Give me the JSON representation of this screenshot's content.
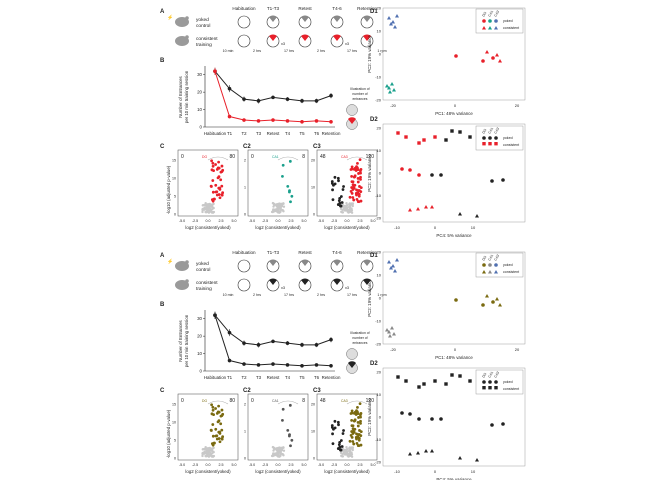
{
  "copies": [
    {
      "accent": "#e8202a",
      "c1_color": "#e8202a",
      "c2_color": "#1aa08c",
      "c3_color": "#e8202a",
      "d1_scatter_colors": [
        "#e8202a",
        "#1aa08c",
        "#5070b0"
      ],
      "d2_scatter_colors": [
        "#e8202a",
        "#222222"
      ]
    },
    {
      "accent": "#222222",
      "c1_color": "#7a6a10",
      "c2_color": "#555555",
      "c3_color": "#7a6a10",
      "d1_scatter_colors": [
        "#7a6a10",
        "#888888",
        "#5070b0"
      ],
      "d2_scatter_colors": [
        "#222222",
        "#222222"
      ]
    }
  ],
  "panel_labels": {
    "A": "A",
    "B": "B",
    "C": "C",
    "C2": "C2",
    "C3": "C3",
    "D1": "D1",
    "D2": "D2"
  },
  "panel_a": {
    "rows": [
      "yoked",
      "control",
      "consistent",
      "training"
    ],
    "stages": [
      "Habituation",
      "T1-T3",
      "Retest",
      "T4-6",
      "Retention"
    ],
    "gaps": [
      "10 min",
      "2 hrs",
      "17 hrs",
      "2 hrs",
      "17 hrs"
    ],
    "x3": "x3",
    "rpm": "1 rpm"
  },
  "chart_data": [
    {
      "type": "line",
      "panel": "B",
      "categories": [
        "Habituation",
        "T1",
        "T2",
        "T3",
        "Retest",
        "T4",
        "T5",
        "T6",
        "Retention"
      ],
      "series": [
        {
          "values": [
            32,
            22,
            16,
            15,
            17,
            16,
            15,
            15,
            18
          ],
          "errors": [
            2,
            2,
            1.5,
            1.5,
            1,
            1.2,
            1.3,
            1.3,
            1.5
          ]
        },
        {
          "values": [
            32,
            6,
            4,
            3.5,
            4,
            3.5,
            3,
            3.5,
            3
          ],
          "errors": [
            2,
            1,
            0.8,
            0.7,
            0.6,
            0.7,
            0.6,
            0.7,
            0.6
          ]
        }
      ],
      "ylabel": "Number of Entrances per 10 min training session",
      "yticks": [
        0,
        10,
        20,
        30
      ],
      "ylim": [
        0,
        35
      ],
      "legend_note": "Illustration of number of entrances"
    },
    {
      "type": "scatter",
      "panels": [
        "C",
        "C2",
        "C3"
      ],
      "xlabel": "log2 (consistent/yoked)",
      "ylabel": "-log10 (adjusted p-value)",
      "xticks": [
        "-5.0",
        "-2.5",
        "0.0",
        "2.5",
        "5.0"
      ],
      "subplots": [
        {
          "region": "DG",
          "left_count": "0",
          "right_count": "80",
          "yticks": [
            "0",
            "5",
            "10",
            "15"
          ]
        },
        {
          "region": "CA1",
          "left_count": "0",
          "right_count": "8",
          "yticks": [
            "0",
            "1",
            "2"
          ]
        },
        {
          "region": "CA3",
          "left_count": "48",
          "right_count": "120",
          "yticks": [
            "0",
            "10",
            "20"
          ]
        }
      ]
    },
    {
      "type": "scatter",
      "panel": "D1",
      "xlabel": "PC1: 48% variance",
      "ylabel": "PC2: 19% variance",
      "xticks": [
        "-20",
        "0",
        "20"
      ],
      "yticks": [
        "-20",
        "-10",
        "0",
        "10",
        "20"
      ],
      "legend": [
        "DG",
        "CA1",
        "CA3",
        "yoked",
        "consistent"
      ]
    },
    {
      "type": "scatter",
      "panel": "D2",
      "xlabel": "PC4: 5% variance",
      "ylabel": "PC2: 19% variance",
      "xticks": [
        "-10",
        "0",
        "10"
      ],
      "yticks": [
        "-20",
        "-10",
        "0",
        "10",
        "20"
      ],
      "legend": [
        "DG",
        "CA1",
        "CA3",
        "yoked",
        "consistent"
      ]
    }
  ]
}
